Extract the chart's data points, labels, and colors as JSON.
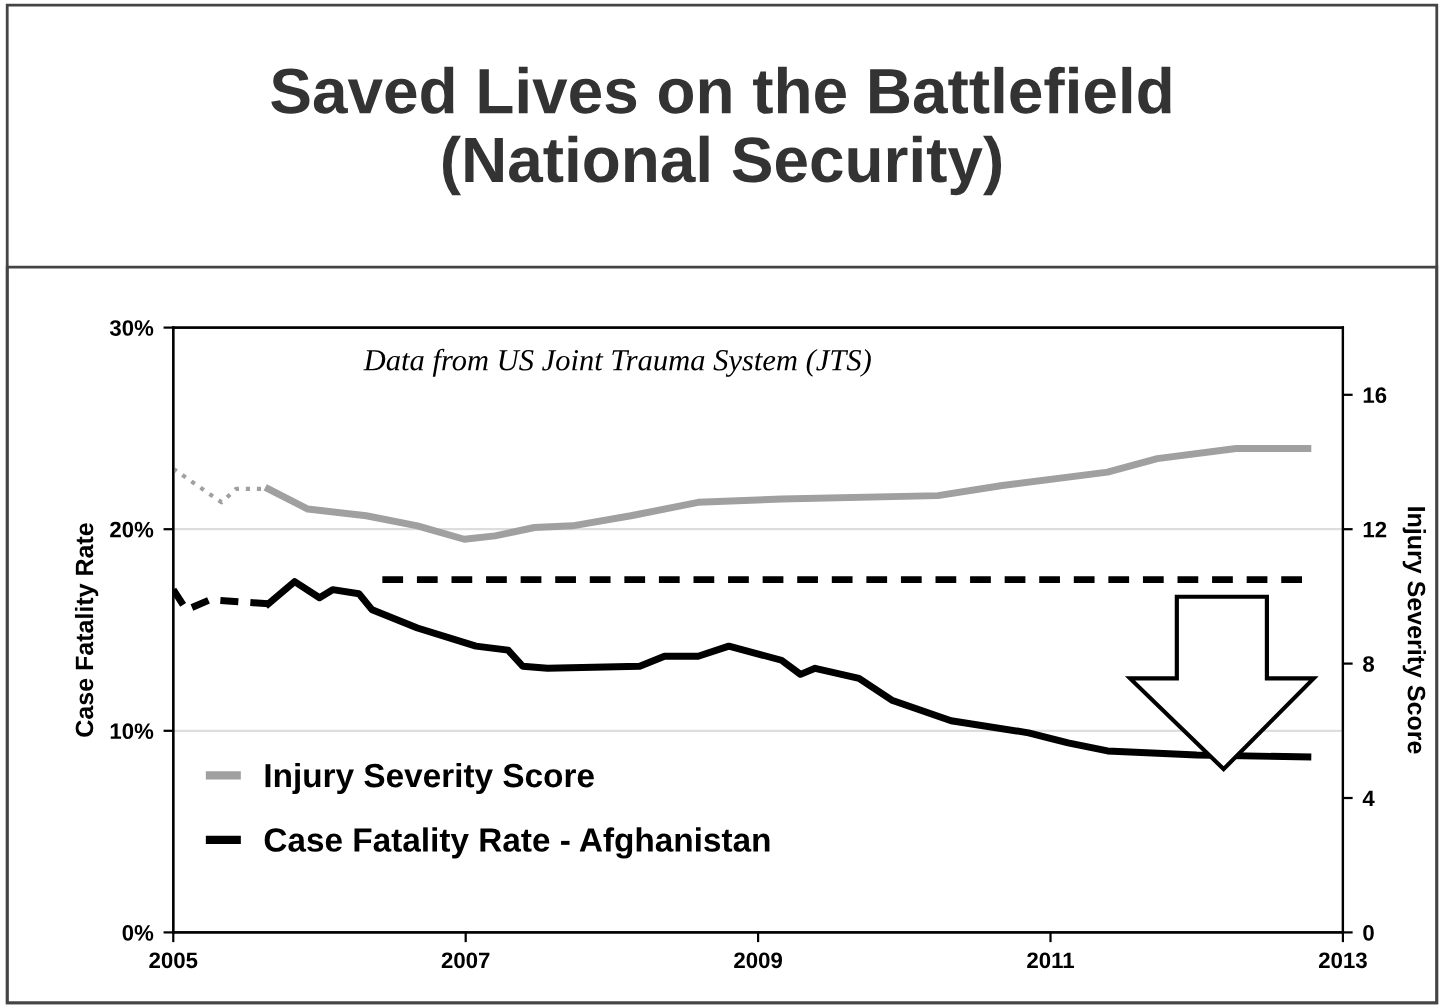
{
  "chart_data": {
    "type": "line",
    "title": "Saved Lives on the Battlefield\n(National Security)",
    "annotations": [
      "Data from US Joint Trauma System (JTS)"
    ],
    "ylabel": "Case Fatality Rate",
    "y2label": "Injury Severity Score",
    "xlim": [
      2005,
      2013
    ],
    "xticks": [
      2005,
      2007,
      2009,
      2011,
      2013
    ],
    "ylim": [
      0,
      30
    ],
    "yticks": [
      {
        "value": 0,
        "label": "0%"
      },
      {
        "value": 10,
        "label": "10%"
      },
      {
        "value": 20,
        "label": "20%"
      },
      {
        "value": 30,
        "label": "30%"
      }
    ],
    "y2lim": [
      0,
      18
    ],
    "y2ticks": [
      0,
      4,
      8,
      12,
      16
    ],
    "grid": "y",
    "legend": "bottom left",
    "series": [
      {
        "color": "#a0a0a0",
        "axis": "y2",
        "line_style": "dotted",
        "x": [
          2005.0,
          2005.33,
          2005.43,
          2005.65
        ],
        "values": [
          13.8,
          12.8,
          13.2,
          13.2
        ]
      },
      {
        "name": "Injury Severity Score",
        "color": "#a0a0a0",
        "axis": "y2",
        "line_style": "solid",
        "x": [
          2005.65,
          2005.92,
          2006.32,
          2006.67,
          2006.99,
          2007.2,
          2007.47,
          2007.73,
          2008.13,
          2008.59,
          2009.16,
          2010.23,
          2010.67,
          2011.39,
          2011.73,
          2012.27,
          2012.76
        ],
        "values": [
          13.2,
          12.6,
          12.4,
          12.1,
          11.7,
          11.8,
          12.05,
          12.1,
          12.4,
          12.8,
          12.9,
          13.0,
          13.3,
          13.7,
          14.1,
          14.4,
          14.4
        ]
      },
      {
        "color": "#000000",
        "line_style": "dashed",
        "x": [
          2005.0,
          2005.09,
          2005.25,
          2005.65
        ],
        "values": [
          17.0,
          16.0,
          16.5,
          16.3
        ]
      },
      {
        "name": "Case Fatality Rate - Afghanistan",
        "color": "#000000",
        "line_style": "solid",
        "x": [
          2005.65,
          2005.83,
          2006.0,
          2006.09,
          2006.27,
          2006.36,
          2006.67,
          2007.07,
          2007.29,
          2007.39,
          2007.56,
          2008.19,
          2008.36,
          2008.59,
          2008.8,
          2009.16,
          2009.29,
          2009.39,
          2009.69,
          2009.92,
          2010.32,
          2010.85,
          2011.12,
          2011.39,
          2012.0,
          2012.76
        ],
        "values": [
          16.3,
          17.4,
          16.6,
          17.0,
          16.8,
          16.0,
          15.1,
          14.2,
          14.0,
          13.2,
          13.1,
          13.2,
          13.7,
          13.7,
          14.2,
          13.5,
          12.8,
          13.1,
          12.6,
          11.5,
          10.5,
          9.9,
          9.4,
          9.0,
          8.8,
          8.7
        ]
      },
      {
        "color": "#000000",
        "line_style": "dashed",
        "x": [
          2006.43,
          2012.72
        ],
        "values": [
          17.5,
          17.5
        ]
      }
    ]
  }
}
